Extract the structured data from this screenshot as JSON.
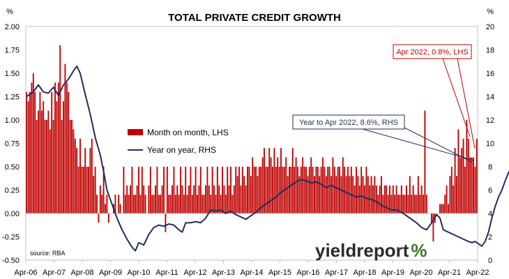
{
  "chart_data": {
    "type": "bar",
    "title": "TOTAL PRIVATE CREDIT GROWTH",
    "left_unit": "%",
    "right_unit": "%",
    "left_axis": {
      "min": -0.5,
      "max": 2.0,
      "step": 0.25,
      "tick_labels": [
        "-0.50",
        "-0.25",
        "0.00",
        "0.25",
        "0.50",
        "0.75",
        "1.00",
        "1.25",
        "1.50",
        "1.75",
        "2.00"
      ]
    },
    "right_axis": {
      "min": 0,
      "max": 20,
      "step": 2,
      "tick_labels": [
        "0",
        "2",
        "4",
        "6",
        "8",
        "10",
        "12",
        "14",
        "16",
        "18",
        "20"
      ]
    },
    "x_tick_labels": [
      "Apr-06",
      "Apr-07",
      "Apr-08",
      "Apr-09",
      "Apr-10",
      "Apr-11",
      "Apr-12",
      "Apr-13",
      "Apr-14",
      "Apr-15",
      "Apr-16",
      "Apr-17",
      "Apr-18",
      "Apr-19",
      "Apr-20",
      "Apr-21",
      "Apr-22"
    ],
    "x_start": "Apr-06",
    "x_end": "Apr-22",
    "series": [
      {
        "name": "Month on month, LHS",
        "type": "bar",
        "axis": "left",
        "color": "#c00000",
        "values": [
          1.3,
          1.2,
          1.3,
          1.4,
          1.5,
          1.3,
          1.0,
          1.1,
          1.3,
          1.1,
          1.2,
          1.0,
          1.0,
          1.1,
          0.9,
          1.3,
          1.0,
          1.4,
          1.2,
          1.4,
          1.8,
          1.0,
          1.2,
          1.6,
          1.4,
          1.3,
          1.0,
          1.0,
          0.9,
          0.8,
          0.7,
          0.5,
          0.8,
          0.5,
          0.5,
          0.7,
          0.5,
          0.5,
          0.7,
          0.8,
          0.4,
          0.5,
          0.2,
          -0.1,
          0.3,
          0.2,
          0.5,
          0.1,
          0.2,
          -0.1,
          0.0,
          0.0,
          0.1,
          0.2,
          0.0,
          0.2,
          0.1,
          0.0,
          0.5,
          0.2,
          0.3,
          0.2,
          0.3,
          0.5,
          0.2,
          0.2,
          0.3,
          0.5,
          0.2,
          0.5,
          0.3,
          0.2,
          0.0,
          0.3,
          0.5,
          0.2,
          0.2,
          0.3,
          0.5,
          0.2,
          0.2,
          0.3,
          0.5,
          -0.2,
          0.5,
          0.2,
          0.2,
          0.3,
          0.5,
          0.2,
          0.3,
          0.2,
          0.5,
          0.3,
          0.2,
          0.5,
          0.2,
          0.3,
          0.5,
          0.2,
          0.3,
          0.5,
          0.2,
          0.3,
          0.5,
          0.2,
          0.2,
          0.3,
          0.5,
          0.3,
          0.2,
          0.5,
          0.3,
          0.2,
          0.5,
          0.3,
          0.2,
          0.5,
          0.3,
          0.2,
          0.5,
          0.3,
          0.5,
          0.2,
          0.3,
          0.5,
          0.4,
          0.5,
          0.3,
          0.5,
          0.4,
          0.3,
          0.5,
          0.5,
          0.4,
          0.6,
          0.5,
          0.5,
          0.4,
          0.5,
          0.5,
          0.6,
          0.7,
          0.5,
          0.5,
          0.7,
          0.6,
          0.5,
          0.7,
          0.5,
          0.6,
          0.5,
          0.7,
          0.5,
          0.5,
          0.6,
          0.4,
          0.5,
          0.5,
          0.7,
          0.5,
          0.6,
          0.5,
          0.4,
          0.5,
          0.6,
          0.5,
          0.5,
          0.4,
          0.5,
          0.6,
          0.5,
          0.4,
          0.5,
          0.5,
          0.4,
          0.5,
          0.6,
          0.5,
          0.4,
          0.5,
          0.5,
          0.4,
          0.6,
          0.5,
          0.4,
          0.5,
          0.5,
          0.4,
          0.6,
          0.5,
          0.4,
          0.5,
          0.4,
          0.5,
          0.4,
          0.3,
          0.5,
          0.4,
          0.3,
          0.5,
          0.4,
          0.3,
          0.5,
          0.4,
          0.3,
          0.4,
          0.3,
          0.4,
          0.3,
          0.2,
          0.3,
          0.4,
          0.2,
          0.3,
          0.3,
          0.2,
          0.3,
          0.2,
          0.3,
          0.2,
          0.3,
          0.2,
          0.2,
          0.3,
          0.2,
          0.2,
          0.3,
          0.2,
          0.4,
          0.2,
          0.3,
          0.2,
          0.2,
          0.4,
          0.2,
          0.3,
          0.2,
          1.1,
          0.2,
          0.0,
          0.0,
          -0.1,
          -0.3,
          -0.1,
          0.0,
          0.0,
          0.1,
          0.1,
          0.1,
          0.2,
          0.3,
          0.1,
          0.4,
          0.5,
          0.3,
          0.7,
          0.4,
          0.9,
          0.6,
          0.7,
          0.8,
          0.5,
          1.0,
          0.8,
          0.6,
          0.6,
          0.6,
          0.5,
          0.8
        ]
      },
      {
        "name": "Year on year, RHS",
        "type": "line",
        "axis": "right",
        "color": "#1f2d5c",
        "values": [
          [
            0,
            14.0
          ],
          [
            4,
            14.4
          ],
          [
            7,
            15.0
          ],
          [
            10,
            14.4
          ],
          [
            13,
            14.3
          ],
          [
            16,
            14.8
          ],
          [
            19,
            14.1
          ],
          [
            22,
            15.0
          ],
          [
            25,
            15.5
          ],
          [
            28,
            16.2
          ],
          [
            30,
            16.6
          ],
          [
            32,
            16.0
          ],
          [
            35,
            14.2
          ],
          [
            38,
            12.5
          ],
          [
            41,
            10.5
          ],
          [
            44,
            9.0
          ],
          [
            46,
            7.6
          ],
          [
            48,
            6.0
          ],
          [
            51,
            4.8
          ],
          [
            54,
            3.6
          ],
          [
            57,
            2.6
          ],
          [
            60,
            1.8
          ],
          [
            63,
            1.1
          ],
          [
            65,
            0.8
          ],
          [
            67,
            1.5
          ],
          [
            70,
            1.3
          ],
          [
            73,
            2.2
          ],
          [
            76,
            2.8
          ],
          [
            79,
            3.0
          ],
          [
            82,
            2.9
          ],
          [
            85,
            3.1
          ],
          [
            88,
            3.0
          ],
          [
            91,
            2.6
          ],
          [
            93,
            2.4
          ],
          [
            95,
            3.2
          ],
          [
            98,
            3.2
          ],
          [
            101,
            3.3
          ],
          [
            104,
            3.2
          ],
          [
            107,
            3.6
          ],
          [
            110,
            4.3
          ],
          [
            113,
            4.2
          ],
          [
            116,
            4.3
          ],
          [
            119,
            4.0
          ],
          [
            122,
            4.2
          ],
          [
            125,
            3.9
          ],
          [
            128,
            3.7
          ],
          [
            131,
            3.5
          ],
          [
            134,
            3.8
          ],
          [
            137,
            4.1
          ],
          [
            140,
            4.5
          ],
          [
            143,
            4.8
          ],
          [
            146,
            5.1
          ],
          [
            149,
            5.4
          ],
          [
            152,
            5.8
          ],
          [
            155,
            6.1
          ],
          [
            158,
            6.4
          ],
          [
            161,
            6.7
          ],
          [
            164,
            6.9
          ],
          [
            167,
            6.8
          ],
          [
            170,
            6.6
          ],
          [
            173,
            6.7
          ],
          [
            176,
            6.5
          ],
          [
            179,
            6.2
          ],
          [
            182,
            6.4
          ],
          [
            185,
            6.2
          ],
          [
            188,
            6.0
          ],
          [
            191,
            5.8
          ],
          [
            194,
            5.6
          ],
          [
            197,
            5.4
          ],
          [
            200,
            5.5
          ],
          [
            203,
            5.3
          ],
          [
            206,
            5.2
          ],
          [
            209,
            5.0
          ],
          [
            212,
            4.7
          ],
          [
            215,
            4.5
          ],
          [
            218,
            4.3
          ],
          [
            221,
            4.3
          ],
          [
            224,
            4.1
          ],
          [
            227,
            3.8
          ],
          [
            230,
            3.5
          ],
          [
            233,
            3.2
          ],
          [
            236,
            2.8
          ],
          [
            239,
            2.6
          ],
          [
            242,
            3.2
          ],
          [
            245,
            3.9
          ],
          [
            247,
            3.6
          ],
          [
            249,
            2.6
          ],
          [
            252,
            2.4
          ],
          [
            255,
            2.2
          ],
          [
            258,
            2.0
          ],
          [
            261,
            1.8
          ],
          [
            264,
            1.6
          ],
          [
            266,
            1.5
          ],
          [
            268,
            1.6
          ],
          [
            270,
            1.4
          ],
          [
            272,
            1.2
          ],
          [
            274,
            1.6
          ],
          [
            276,
            2.4
          ],
          [
            278,
            3.6
          ],
          [
            280,
            4.6
          ],
          [
            282,
            5.4
          ],
          [
            284,
            6.0
          ],
          [
            286,
            6.8
          ],
          [
            288,
            7.5
          ],
          [
            290,
            8.0
          ],
          [
            292,
            8.3
          ],
          [
            293,
            8.4
          ],
          [
            294,
            8.5
          ],
          [
            295,
            8.4
          ],
          [
            296,
            8.6
          ]
        ]
      }
    ],
    "annotations": [
      {
        "text": "Apr 2022, 0.8%, LHS",
        "color": "#c00000"
      },
      {
        "text": "Year to Apr 2022, 8.6%, RHS",
        "color": "#1f2d5c"
      }
    ],
    "source": "source: RBA",
    "grid": false,
    "legend_position": "center-left"
  },
  "logo": {
    "text_main": "yieldreport",
    "text_pct": "%"
  }
}
